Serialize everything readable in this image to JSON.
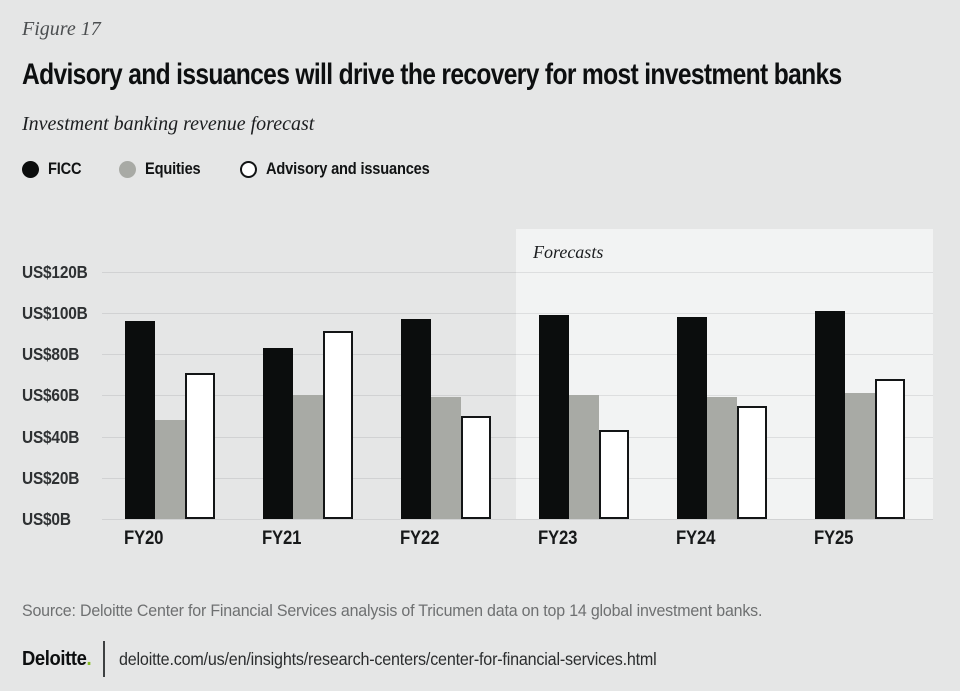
{
  "figure_label": "Figure 17",
  "title": "Advisory and issuances will drive the recovery for most investment banks",
  "subtitle": "Investment banking revenue forecast",
  "legend": {
    "items": [
      {
        "label": "FICC",
        "color": "#0b0d0d",
        "style": "filled"
      },
      {
        "label": "Equities",
        "color": "#a8aaa5",
        "style": "filled"
      },
      {
        "label": "Advisory and issuances",
        "color": "#ffffff",
        "style": "outlined"
      }
    ]
  },
  "chart_data": {
    "type": "bar",
    "title": "Investment banking revenue forecast",
    "unit": "US$B",
    "categories": [
      "FY20",
      "FY21",
      "FY22",
      "FY23",
      "FY24",
      "FY25"
    ],
    "series": [
      {
        "name": "FICC",
        "color": "#0b0d0d",
        "outlined": false,
        "values": [
          96,
          83,
          97,
          99,
          98,
          101
        ]
      },
      {
        "name": "Equities",
        "color": "#a8aaa5",
        "outlined": false,
        "values": [
          48,
          60,
          59,
          60,
          59,
          61
        ]
      },
      {
        "name": "Advisory and issuances",
        "color": "#ffffff",
        "outlined": true,
        "values": [
          71,
          91,
          50,
          43,
          55,
          68
        ]
      }
    ],
    "yticks": [
      0,
      20,
      40,
      60,
      80,
      100,
      120
    ],
    "ytick_labels": [
      "US$0B",
      "US$20B",
      "US$40B",
      "US$60B",
      "US$80B",
      "US$100B",
      "US$120B"
    ],
    "ylim": [
      0,
      140
    ],
    "grid": true,
    "legend_position": "top-left",
    "forecast_region": {
      "label": "Forecasts",
      "start_category": "FY23",
      "end_category": "FY25"
    }
  },
  "source": "Source: Deloitte Center for Financial Services analysis of Tricumen data on top 14 global investment banks.",
  "footer": {
    "brand": "Deloitte",
    "brand_dot": ".",
    "url": "deloitte.com/us/en/insights/research-centers/center-for-financial-services.html"
  },
  "colors": {
    "page_background": "#e5e6e6",
    "forecast_band": "#f2f3f3",
    "ficc_bar": "#0b0d0d",
    "equities_bar": "#a8aaa5",
    "advisory_bar_fill": "#ffffff",
    "advisory_bar_border": "#131516",
    "brand_green": "#86bc25"
  }
}
